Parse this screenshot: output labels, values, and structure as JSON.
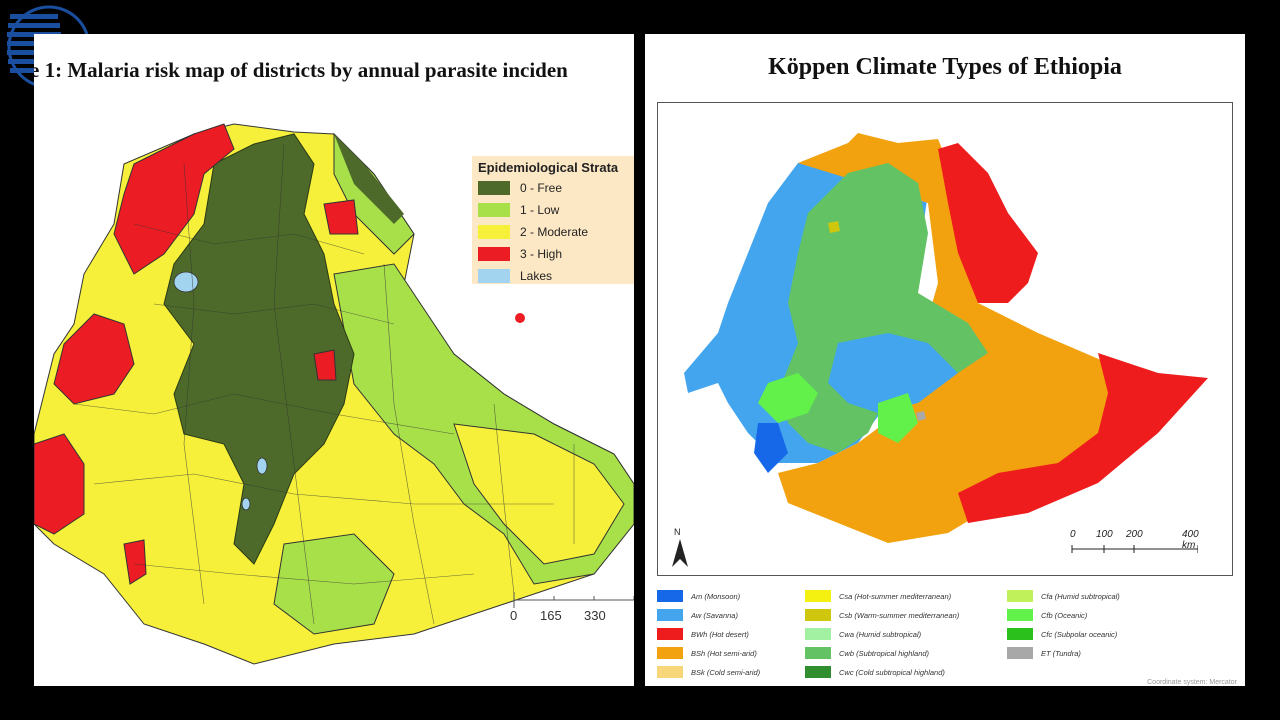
{
  "left_panel": {
    "title": "e 1: Malaria risk map of districts by annual parasite inciden",
    "legend": {
      "title": "Epidemiological Strata",
      "items": [
        {
          "label": "0 - Free",
          "color": "#4d6a2a"
        },
        {
          "label": "1 - Low",
          "color": "#a8e04a"
        },
        {
          "label": "2 - Moderate",
          "color": "#f6f03a"
        },
        {
          "label": "3 - High",
          "color": "#ec1c24"
        },
        {
          "label": "Lakes",
          "color": "#a3d4ef"
        }
      ]
    },
    "scale": [
      "0",
      "165",
      "330"
    ]
  },
  "right_panel": {
    "title": "Köppen Climate Types of Ethiopia",
    "north_label": "N",
    "scale": [
      "0",
      "100",
      "200",
      "400 km"
    ],
    "legend": [
      {
        "label": "Am (Monsoon)",
        "color": "#1668e8"
      },
      {
        "label": "Aw (Savanna)",
        "color": "#43a5ee"
      },
      {
        "label": "BWh (Hot desert)",
        "color": "#ee1c1c"
      },
      {
        "label": "BSh (Hot semi-arid)",
        "color": "#f2a20f"
      },
      {
        "label": "BSk (Cold semi-arid)",
        "color": "#f8d77a"
      },
      {
        "label": "Csa (Hot-summer mediterranean)",
        "color": "#f4f00f"
      },
      {
        "label": "Csb (Warm-summer mediterranean)",
        "color": "#cfc70e"
      },
      {
        "label": "Cwa (Humid subtropical)",
        "color": "#a2f0a2"
      },
      {
        "label": "Cwb (Subtropical highland)",
        "color": "#62c264"
      },
      {
        "label": "Cwc (Cold subtropical highland)",
        "color": "#2f8f2f"
      },
      {
        "label": "Cfa (Humid subtropical)",
        "color": "#c0f05a"
      },
      {
        "label": "Cfb (Oceanic)",
        "color": "#62f04a"
      },
      {
        "label": "Cfc (Subpolar oceanic)",
        "color": "#2cc01c"
      },
      {
        "label": "ET (Tundra)",
        "color": "#a8a8a8"
      }
    ],
    "coord_note": "Coordinate system: Mercator"
  }
}
